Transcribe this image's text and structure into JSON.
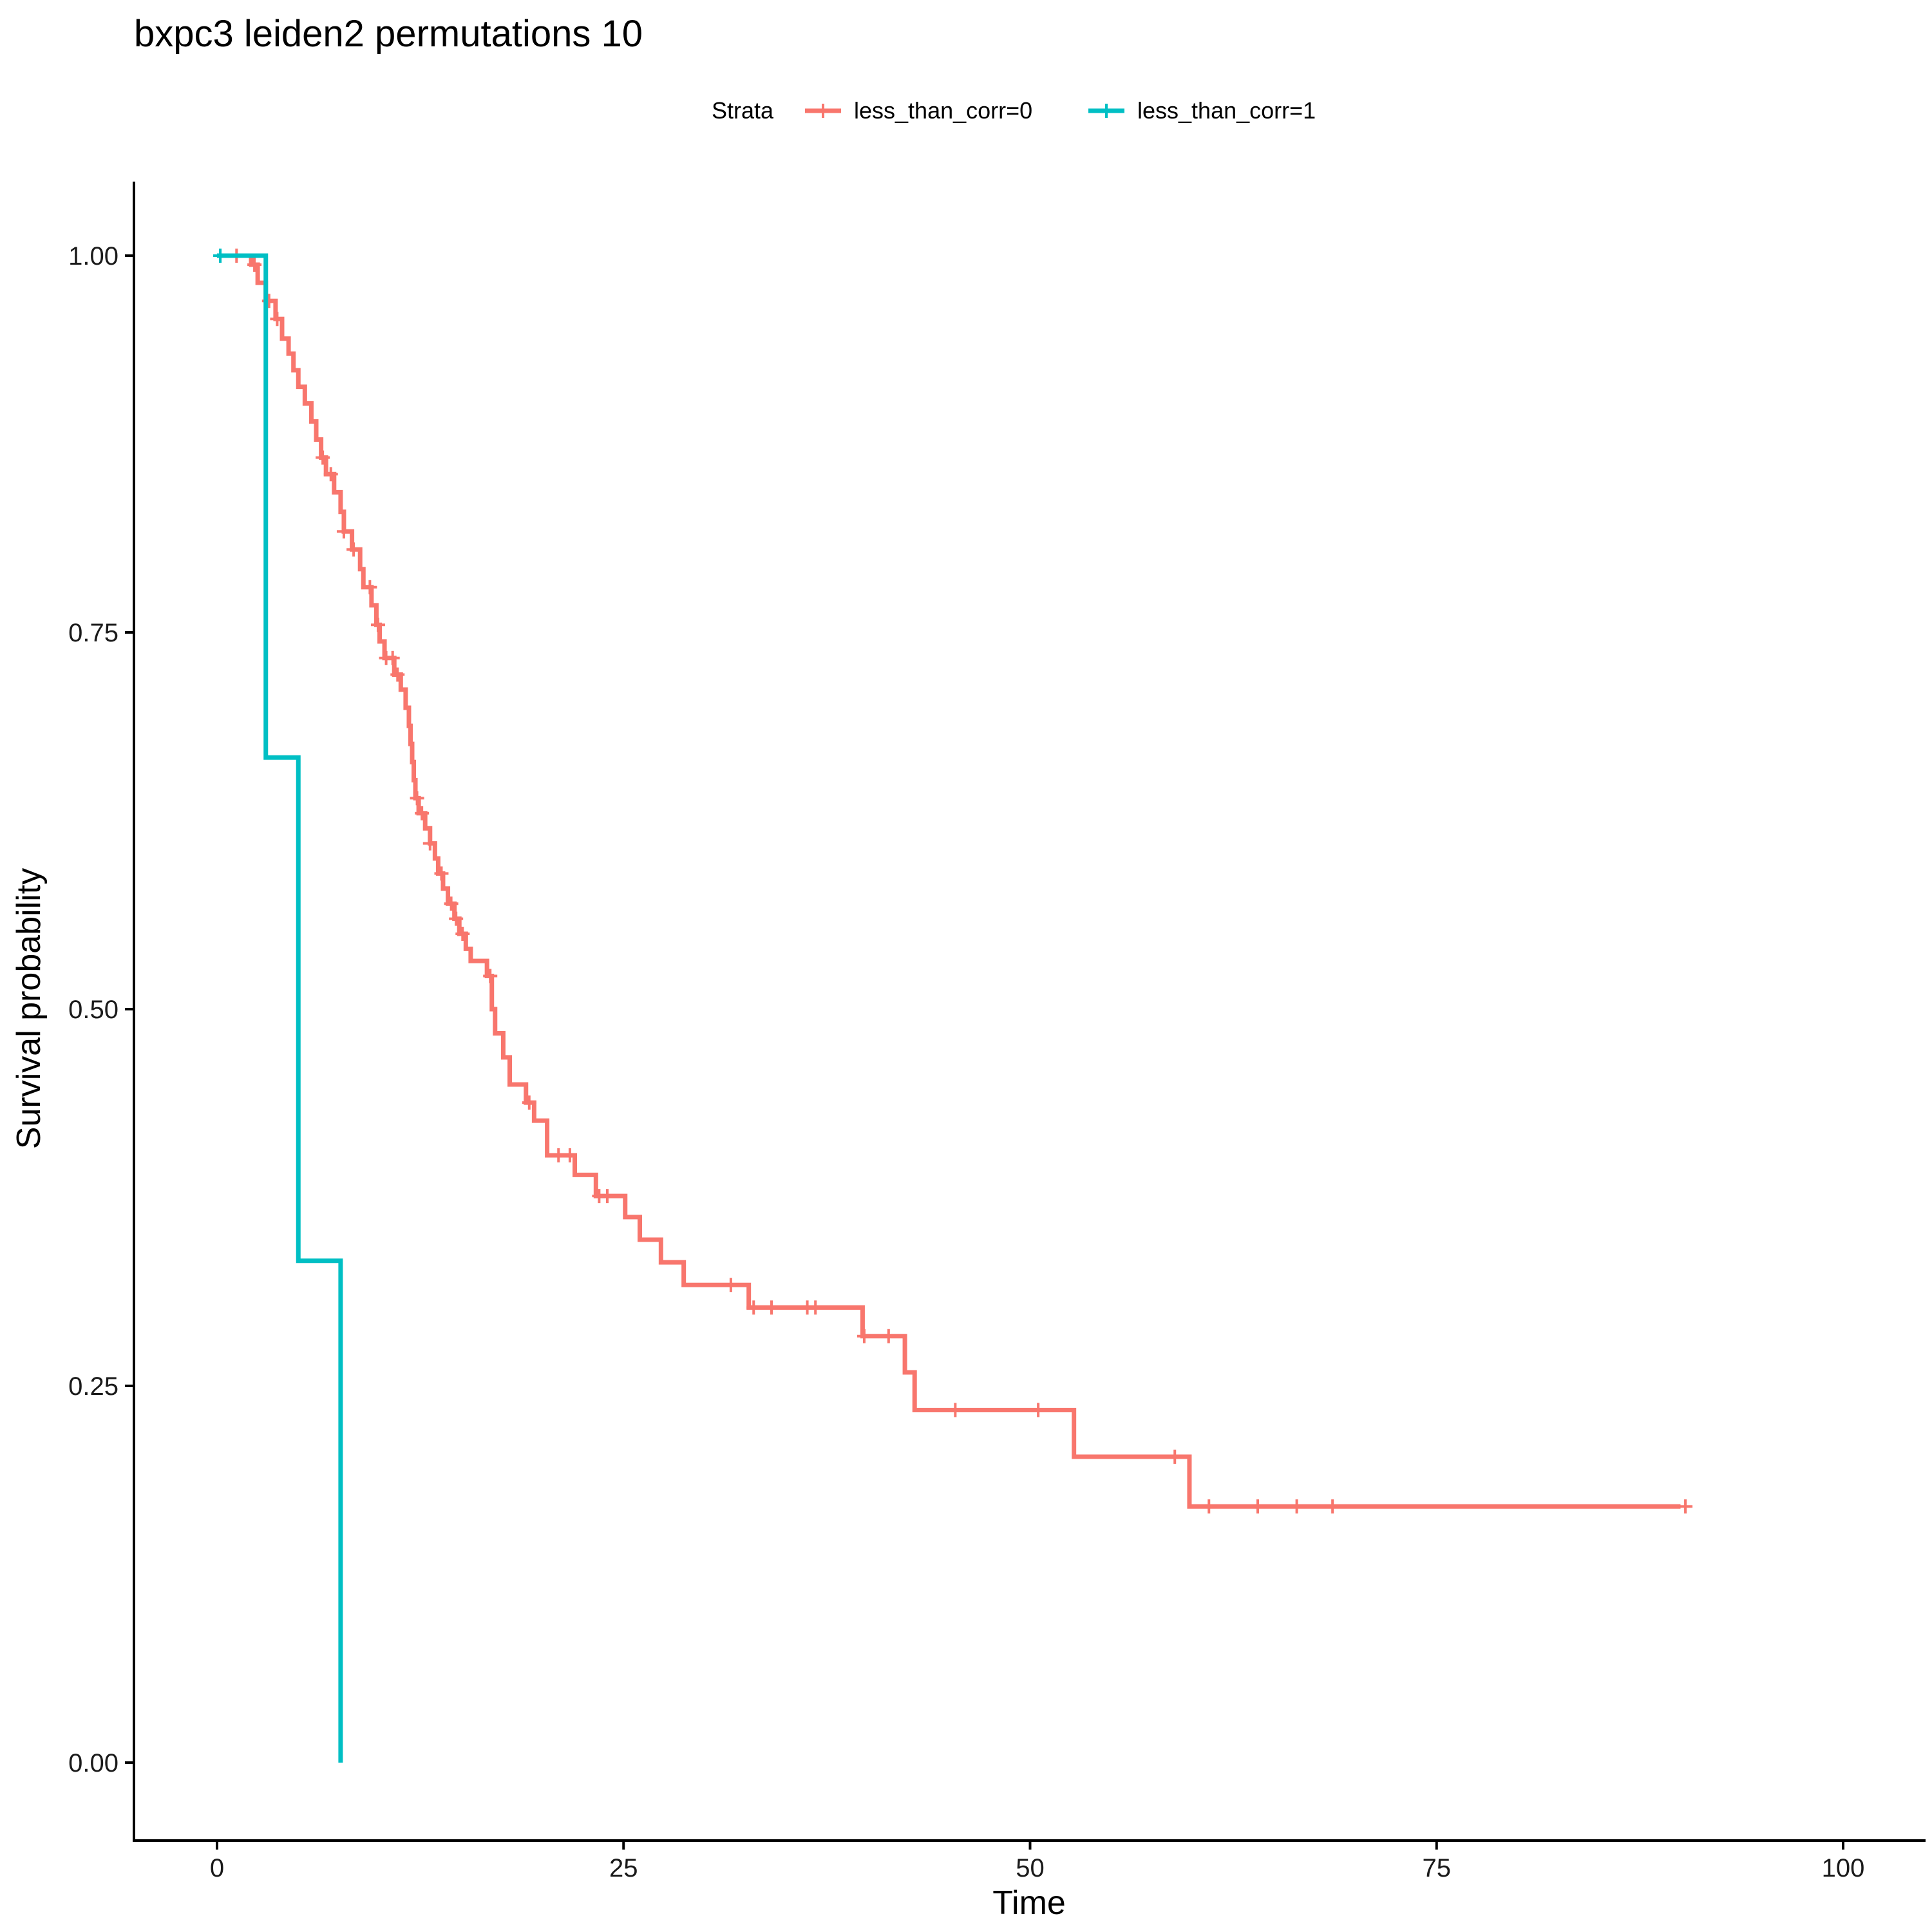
{
  "chart_data": {
    "type": "line",
    "title": "bxpc3 leiden2 permutations 10",
    "xlabel": "Time",
    "ylabel": "Survival probability",
    "xlim": [
      -2.0,
      105.0
    ],
    "ylim": [
      -0.05,
      1.05
    ],
    "x_ticks": [
      0,
      25,
      50,
      75,
      100
    ],
    "x_tick_labels": [
      "0",
      "25",
      "50",
      "75",
      "100"
    ],
    "y_ticks": [
      0.0,
      0.25,
      0.5,
      0.75,
      1.0
    ],
    "y_tick_labels": [
      "0.00",
      "0.25",
      "0.50",
      "0.75",
      "1.00"
    ],
    "grid": false,
    "legend": {
      "title": "Strata",
      "position": "top"
    },
    "series": [
      {
        "name": "less_than_corr=0",
        "color": "#F8766D",
        "steps": [
          [
            0,
            1.0
          ],
          [
            2.1,
            0.994
          ],
          [
            2.5,
            0.982
          ],
          [
            3.0,
            0.97
          ],
          [
            3.6,
            0.958
          ],
          [
            4.0,
            0.945
          ],
          [
            4.4,
            0.935
          ],
          [
            4.7,
            0.924
          ],
          [
            5.0,
            0.913
          ],
          [
            5.4,
            0.902
          ],
          [
            5.8,
            0.89
          ],
          [
            6.1,
            0.878
          ],
          [
            6.4,
            0.866
          ],
          [
            6.7,
            0.855
          ],
          [
            7.2,
            0.843
          ],
          [
            7.6,
            0.83
          ],
          [
            7.8,
            0.817
          ],
          [
            8.3,
            0.805
          ],
          [
            8.8,
            0.792
          ],
          [
            9.0,
            0.78
          ],
          [
            9.5,
            0.768
          ],
          [
            9.8,
            0.755
          ],
          [
            10.0,
            0.744
          ],
          [
            10.3,
            0.733
          ],
          [
            10.9,
            0.722
          ],
          [
            11.3,
            0.712
          ],
          [
            11.6,
            0.7
          ],
          [
            11.8,
            0.688
          ],
          [
            11.9,
            0.676
          ],
          [
            12.0,
            0.664
          ],
          [
            12.1,
            0.652
          ],
          [
            12.2,
            0.64
          ],
          [
            12.4,
            0.63
          ],
          [
            12.8,
            0.62
          ],
          [
            13.1,
            0.61
          ],
          [
            13.4,
            0.6
          ],
          [
            13.6,
            0.59
          ],
          [
            13.9,
            0.58
          ],
          [
            14.2,
            0.57
          ],
          [
            14.6,
            0.56
          ],
          [
            14.9,
            0.55
          ],
          [
            15.3,
            0.54
          ],
          [
            15.6,
            0.532
          ],
          [
            16.6,
            0.522
          ],
          [
            16.9,
            0.5
          ],
          [
            17.1,
            0.484
          ],
          [
            17.6,
            0.468
          ],
          [
            18.0,
            0.45
          ],
          [
            19.0,
            0.438
          ],
          [
            19.5,
            0.426
          ],
          [
            20.3,
            0.403
          ],
          [
            22.0,
            0.39
          ],
          [
            23.3,
            0.376
          ],
          [
            25.1,
            0.362
          ],
          [
            26.0,
            0.347
          ],
          [
            27.3,
            0.332
          ],
          [
            28.7,
            0.317
          ],
          [
            32.7,
            0.302
          ],
          [
            39.7,
            0.283
          ],
          [
            42.3,
            0.259
          ],
          [
            42.9,
            0.234
          ],
          [
            52.7,
            0.203
          ],
          [
            59.8,
            0.17
          ],
          [
            90.0,
            0.17
          ]
        ],
        "censored_times": [
          1.2,
          2.3,
          3.2,
          3.7,
          6.5,
          7.0,
          7.8,
          8.4,
          9.4,
          9.9,
          10.4,
          10.8,
          11.1,
          12.3,
          12.6,
          13.1,
          13.8,
          14.4,
          14.7,
          15.1,
          16.8,
          19.2,
          21.0,
          21.7,
          23.5,
          24.0,
          31.6,
          33.0,
          34.1,
          36.3,
          36.8,
          39.8,
          41.3,
          45.4,
          50.5,
          58.9,
          61.0,
          64.0,
          66.4,
          68.6,
          90.3
        ]
      },
      {
        "name": "less_than_corr=1",
        "color": "#00BFC4",
        "steps": [
          [
            0,
            1.0
          ],
          [
            3.0,
            0.667
          ],
          [
            5.0,
            0.333
          ],
          [
            7.6,
            0.0
          ]
        ],
        "censored_times": [
          0.2
        ]
      }
    ]
  }
}
